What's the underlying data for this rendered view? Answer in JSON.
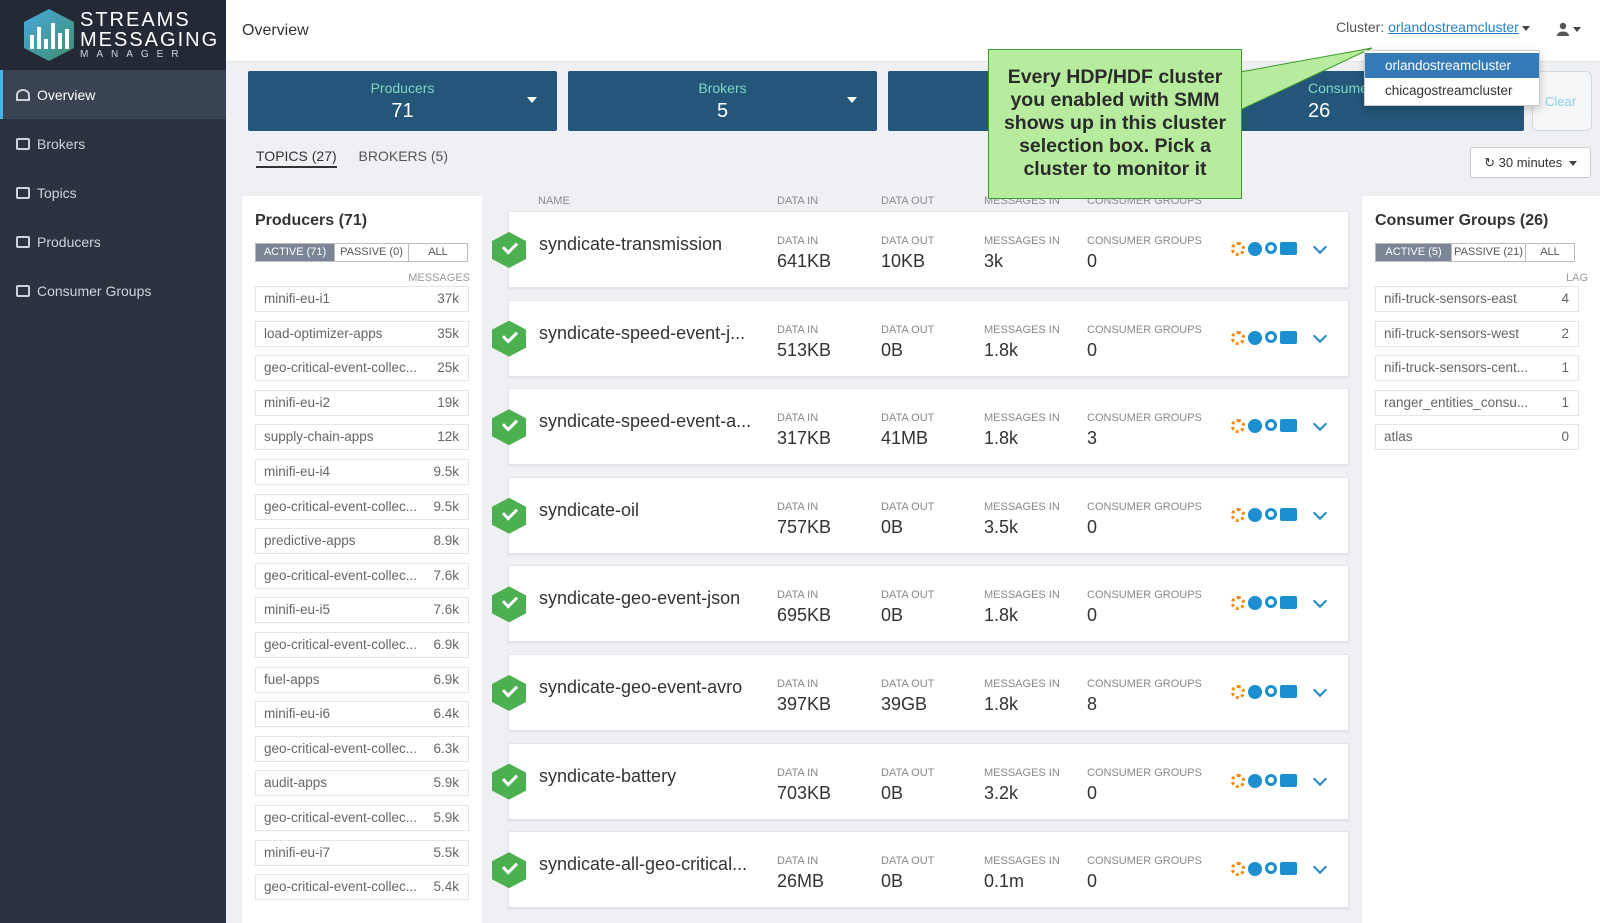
{
  "brand": {
    "line1": "STREAMS",
    "line2": "MESSAGING",
    "line3": "MANAGER"
  },
  "nav": [
    {
      "label": "Overview",
      "icon": "dashboard-icon"
    },
    {
      "label": "Brokers",
      "icon": "server-icon"
    },
    {
      "label": "Topics",
      "icon": "database-icon"
    },
    {
      "label": "Producers",
      "icon": "sign-out-icon"
    },
    {
      "label": "Consumer Groups",
      "icon": "sign-in-icon"
    }
  ],
  "header": {
    "title": "Overview",
    "cluster_label": "Cluster:",
    "cluster_value": "orlandostreamcluster"
  },
  "cluster_options": [
    "orlandostreamcluster",
    "chicagostreamcluster"
  ],
  "tiles": [
    {
      "label": "Producers",
      "value": "71"
    },
    {
      "label": "Brokers",
      "value": "5"
    },
    {
      "label": "",
      "value": ""
    },
    {
      "label": "Consume",
      "value": "26"
    }
  ],
  "clear_label": "Clear",
  "tabs": {
    "topics": "TOPICS (27)",
    "brokers": "BROKERS (5)"
  },
  "time_range": "30 minutes",
  "callout": "Every HDP/HDF cluster you enabled with SMM shows up in this cluster selection box. Pick a cluster to monitor it",
  "producers": {
    "title": "Producers (71)",
    "filters": [
      "ACTIVE (71)",
      "PASSIVE (0)",
      "ALL"
    ],
    "col": "MESSAGES",
    "items": [
      {
        "name": "minifi-eu-i1",
        "value": "37k"
      },
      {
        "name": "load-optimizer-apps",
        "value": "35k"
      },
      {
        "name": "geo-critical-event-collec...",
        "value": "25k"
      },
      {
        "name": "minifi-eu-i2",
        "value": "19k"
      },
      {
        "name": "supply-chain-apps",
        "value": "12k"
      },
      {
        "name": "minifi-eu-i4",
        "value": "9.5k"
      },
      {
        "name": "geo-critical-event-collec...",
        "value": "9.5k"
      },
      {
        "name": "predictive-apps",
        "value": "8.9k"
      },
      {
        "name": "geo-critical-event-collec...",
        "value": "7.6k"
      },
      {
        "name": "minifi-eu-i5",
        "value": "7.6k"
      },
      {
        "name": "geo-critical-event-collec...",
        "value": "6.9k"
      },
      {
        "name": "fuel-apps",
        "value": "6.9k"
      },
      {
        "name": "minifi-eu-i6",
        "value": "6.4k"
      },
      {
        "name": "geo-critical-event-collec...",
        "value": "6.3k"
      },
      {
        "name": "audit-apps",
        "value": "5.9k"
      },
      {
        "name": "geo-critical-event-collec...",
        "value": "5.9k"
      },
      {
        "name": "minifi-eu-i7",
        "value": "5.5k"
      },
      {
        "name": "geo-critical-event-collec...",
        "value": "5.4k"
      }
    ]
  },
  "consumers": {
    "title": "Consumer Groups (26)",
    "filters": [
      "ACTIVE (5)",
      "PASSIVE (21)",
      "ALL"
    ],
    "col": "LAG",
    "items": [
      {
        "name": "nifi-truck-sensors-east",
        "value": "4"
      },
      {
        "name": "nifi-truck-sensors-west",
        "value": "2"
      },
      {
        "name": "nifi-truck-sensors-cent...",
        "value": "1"
      },
      {
        "name": "ranger_entities_consu...",
        "value": "1"
      },
      {
        "name": "atlas",
        "value": "0"
      }
    ]
  },
  "topic_headers": {
    "name": "NAME",
    "data_in": "DATA IN",
    "data_out": "DATA OUT",
    "messages_in": "MESSAGES IN",
    "consumer_groups": "CONSUMER GROUPS"
  },
  "topics": [
    {
      "name": "syndicate-transmission",
      "data_in": "641KB",
      "data_out": "10KB",
      "messages_in": "3k",
      "consumer_groups": "0"
    },
    {
      "name": "syndicate-speed-event-j...",
      "data_in": "513KB",
      "data_out": "0B",
      "messages_in": "1.8k",
      "consumer_groups": "0"
    },
    {
      "name": "syndicate-speed-event-a...",
      "data_in": "317KB",
      "data_out": "41MB",
      "messages_in": "1.8k",
      "consumer_groups": "3"
    },
    {
      "name": "syndicate-oil",
      "data_in": "757KB",
      "data_out": "0B",
      "messages_in": "3.5k",
      "consumer_groups": "0"
    },
    {
      "name": "syndicate-geo-event-json",
      "data_in": "695KB",
      "data_out": "0B",
      "messages_in": "1.8k",
      "consumer_groups": "0"
    },
    {
      "name": "syndicate-geo-event-avro",
      "data_in": "397KB",
      "data_out": "39GB",
      "messages_in": "1.8k",
      "consumer_groups": "8"
    },
    {
      "name": "syndicate-battery",
      "data_in": "703KB",
      "data_out": "0B",
      "messages_in": "3.2k",
      "consumer_groups": "0"
    },
    {
      "name": "syndicate-all-geo-critical...",
      "data_in": "26MB",
      "data_out": "0B",
      "messages_in": "0.1m",
      "consumer_groups": "0"
    }
  ]
}
